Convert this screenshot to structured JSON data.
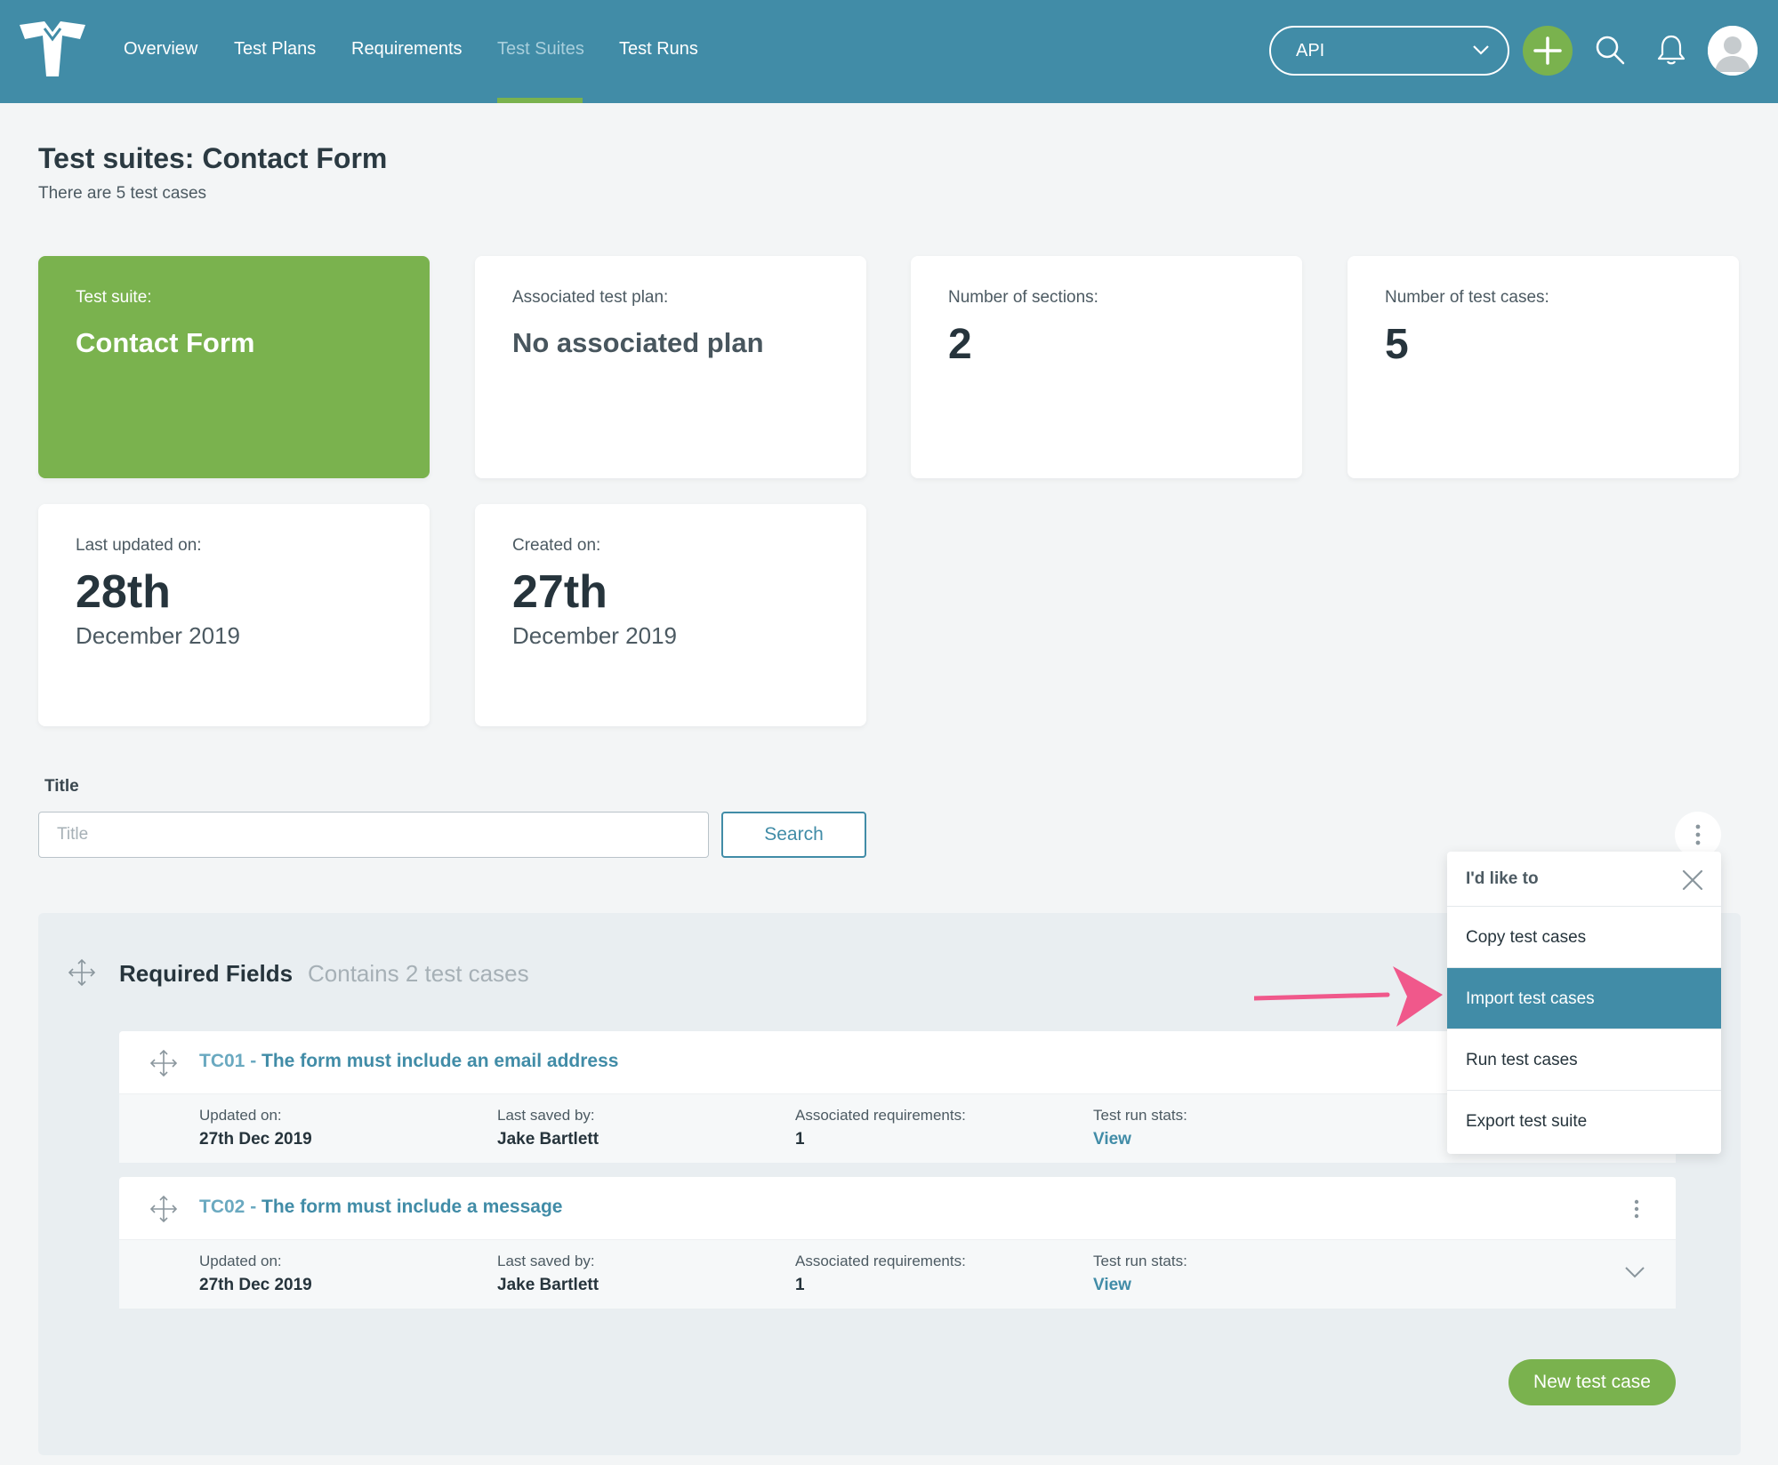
{
  "nav": {
    "items": [
      {
        "label": "Overview",
        "active": false
      },
      {
        "label": "Test Plans",
        "active": false
      },
      {
        "label": "Requirements",
        "active": false
      },
      {
        "label": "Test Suites",
        "active": true
      },
      {
        "label": "Test Runs",
        "active": false
      }
    ],
    "project_select": "API",
    "icons": [
      "logo-icon",
      "plus-icon",
      "search-icon",
      "bell-icon",
      "avatar"
    ]
  },
  "header": {
    "title": "Test suites: Contact Form",
    "subtitle": "There are 5 test cases"
  },
  "cards": {
    "suite_label": "Test suite:",
    "suite_value": "Contact Form",
    "plan_label": "Associated test plan:",
    "plan_value": "No associated plan",
    "sections_label": "Number of sections:",
    "sections_value": "2",
    "cases_label": "Number of test cases:",
    "cases_value": "5",
    "updated_label": "Last updated on:",
    "updated_day": "28th",
    "updated_month": "December 2019",
    "created_label": "Created on:",
    "created_day": "27th",
    "created_month": "December 2019"
  },
  "filter": {
    "label": "Title",
    "placeholder": "Title",
    "search_label": "Search"
  },
  "section": {
    "title": "Required Fields",
    "count": "Contains 2 test cases",
    "test_cases": [
      {
        "id": "TC01",
        "separator": " - ",
        "title": "The form must include an email address",
        "updated_label": "Updated on:",
        "updated_value": "27th Dec 2019",
        "saved_label": "Last saved by:",
        "saved_value": "Jake Bartlett",
        "req_label": "Associated requirements:",
        "req_value": "1",
        "stats_label": "Test run stats:",
        "stats_link": "View"
      },
      {
        "id": "TC02",
        "separator": " - ",
        "title": "The form must include a message",
        "updated_label": "Updated on:",
        "updated_value": "27th Dec 2019",
        "saved_label": "Last saved by:",
        "saved_value": "Jake Bartlett",
        "req_label": "Associated requirements:",
        "req_value": "1",
        "stats_label": "Test run stats:",
        "stats_link": "View"
      }
    ],
    "new_button": "New test case"
  },
  "menu": {
    "title": "I'd like to",
    "items": [
      {
        "label": "Copy test cases",
        "active": false
      },
      {
        "label": "Import test cases",
        "active": true
      },
      {
        "label": "Run test cases",
        "active": false
      },
      {
        "label": "Export test suite",
        "active": false
      }
    ]
  },
  "colors": {
    "brand_blue": "#418ca7",
    "brand_green": "#7ab24e",
    "annotation_arrow": "#f0588b",
    "background": "#f3f5f6"
  }
}
